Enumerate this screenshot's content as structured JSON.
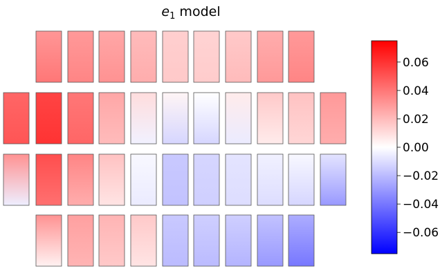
{
  "chart_data": {
    "type": "heatmap",
    "title_symbol": "e",
    "title_subscript": "1",
    "title_rest": " model",
    "xlabel": "",
    "ylabel": "",
    "colormap": "bwr",
    "color_min": "#0000ff",
    "color_mid": "#ffffff",
    "color_max": "#ff0000",
    "vmin": -0.075,
    "vmax": 0.075,
    "colorbar_ticks": [
      0.06,
      0.04,
      0.02,
      0.0,
      -0.02,
      -0.04,
      -0.06
    ],
    "colorbar_tick_labels": [
      "0.06",
      "0.04",
      "0.02",
      "0.00",
      "−0.02",
      "−0.04",
      "−0.06"
    ],
    "rows": [
      {
        "row": 1,
        "chips": [
          {
            "col": 2,
            "top": 0.031,
            "bottom": 0.04
          },
          {
            "col": 3,
            "top": 0.03,
            "bottom": 0.036
          },
          {
            "col": 4,
            "top": 0.026,
            "bottom": 0.032
          },
          {
            "col": 5,
            "top": 0.02,
            "bottom": 0.024
          },
          {
            "col": 6,
            "top": 0.014,
            "bottom": 0.016
          },
          {
            "col": 7,
            "top": 0.013,
            "bottom": 0.015
          },
          {
            "col": 8,
            "top": 0.016,
            "bottom": 0.02
          },
          {
            "col": 9,
            "top": 0.024,
            "bottom": 0.03
          },
          {
            "col": 10,
            "top": 0.03,
            "bottom": 0.036
          }
        ]
      },
      {
        "row": 2,
        "chips": [
          {
            "col": 1,
            "top": 0.045,
            "bottom": 0.05
          },
          {
            "col": 2,
            "top": 0.055,
            "bottom": 0.06
          },
          {
            "col": 3,
            "top": 0.04,
            "bottom": 0.045
          },
          {
            "col": 4,
            "top": 0.026,
            "bottom": 0.02
          },
          {
            "col": 5,
            "top": 0.01,
            "bottom": -0.004
          },
          {
            "col": 6,
            "top": 0.003,
            "bottom": -0.012
          },
          {
            "col": 7,
            "top": 0.0,
            "bottom": -0.012
          },
          {
            "col": 8,
            "top": 0.006,
            "bottom": -0.006
          },
          {
            "col": 9,
            "top": 0.016,
            "bottom": 0.006
          },
          {
            "col": 10,
            "top": 0.018,
            "bottom": 0.012
          },
          {
            "col": 11,
            "top": 0.03,
            "bottom": 0.024
          }
        ]
      },
      {
        "row": 3,
        "chips": [
          {
            "col": 1,
            "top": 0.032,
            "bottom": -0.005
          },
          {
            "col": 2,
            "top": 0.052,
            "bottom": 0.042
          },
          {
            "col": 3,
            "top": 0.036,
            "bottom": 0.024
          },
          {
            "col": 4,
            "top": 0.018,
            "bottom": 0.008
          },
          {
            "col": 5,
            "top": -0.002,
            "bottom": -0.006
          },
          {
            "col": 6,
            "top": -0.016,
            "bottom": -0.018
          },
          {
            "col": 7,
            "top": -0.012,
            "bottom": -0.014
          },
          {
            "col": 8,
            "top": -0.008,
            "bottom": -0.01
          },
          {
            "col": 9,
            "top": -0.004,
            "bottom": -0.01
          },
          {
            "col": 10,
            "top": -0.002,
            "bottom": -0.012
          },
          {
            "col": 11,
            "top": -0.008,
            "bottom": -0.03
          }
        ]
      },
      {
        "row": 4,
        "chips": [
          {
            "col": 2,
            "top": 0.032,
            "bottom": 0.004
          },
          {
            "col": 3,
            "top": 0.028,
            "bottom": 0.022
          },
          {
            "col": 4,
            "top": 0.022,
            "bottom": 0.016
          },
          {
            "col": 5,
            "top": 0.016,
            "bottom": 0.008
          },
          {
            "col": 6,
            "top": -0.016,
            "bottom": -0.02
          },
          {
            "col": 7,
            "top": -0.014,
            "bottom": -0.02
          },
          {
            "col": 8,
            "top": -0.014,
            "bottom": -0.022
          },
          {
            "col": 9,
            "top": -0.018,
            "bottom": -0.03
          },
          {
            "col": 10,
            "top": -0.024,
            "bottom": -0.04
          }
        ]
      }
    ]
  }
}
